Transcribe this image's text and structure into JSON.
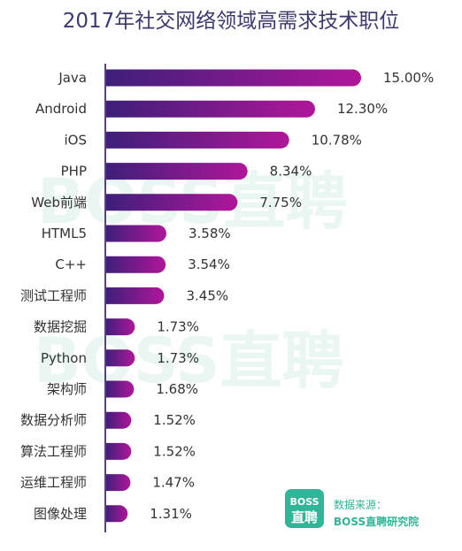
{
  "watermark": "BOSS直聘",
  "logo": {
    "line1": "BOSS",
    "line2": "直聘",
    "color": "#2fb597"
  },
  "source": {
    "label": "数据来源：",
    "name": "BOSS直聘研究院"
  },
  "chart_data": {
    "type": "bar",
    "orientation": "horizontal",
    "title": "2017年社交网络领域高需求技术职位",
    "categories": [
      "Java",
      "Android",
      "iOS",
      "PHP",
      "Web前端",
      "HTML5",
      "C++",
      "测试工程师",
      "数据挖掘",
      "Python",
      "架构师",
      "数据分析师",
      "算法工程师",
      "运维工程师",
      "图像处理"
    ],
    "values": [
      15.0,
      12.3,
      10.78,
      8.34,
      7.75,
      3.58,
      3.54,
      3.45,
      1.73,
      1.73,
      1.68,
      1.52,
      1.52,
      1.47,
      1.31
    ],
    "labels": [
      "15.00%",
      "12.30%",
      "10.78%",
      "8.34%",
      "7.75%",
      "3.58%",
      "3.54%",
      "3.45%",
      "1.73%",
      "1.73%",
      "1.68%",
      "1.52%",
      "1.52%",
      "1.47%",
      "1.31%"
    ],
    "unit": "%",
    "xlim": [
      0,
      15
    ],
    "grid": false,
    "colors": {
      "bar_start": "#3d1f7a",
      "bar_end": "#b0169a",
      "axis": "#5a3e8a",
      "title": "#3b3a6e"
    }
  }
}
